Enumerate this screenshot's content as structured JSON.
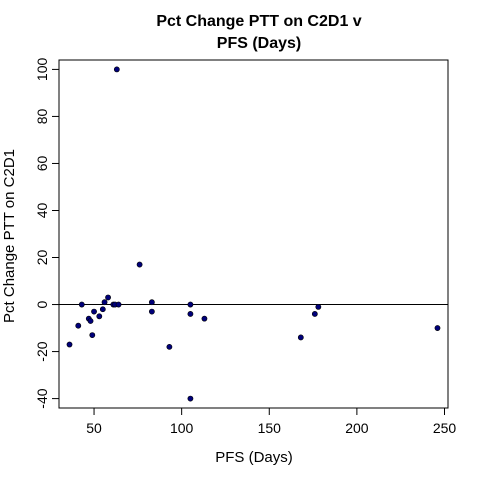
{
  "chart_data": {
    "type": "scatter",
    "title": [
      "Pct Change PTT on C2D1 v",
      "PFS (Days)"
    ],
    "xlabel": "PFS (Days)",
    "ylabel": "Pct Change PTT on C2D1",
    "xlim": [
      30,
      252
    ],
    "ylim": [
      -44,
      104
    ],
    "xticks": [
      50,
      100,
      150,
      200,
      250
    ],
    "yticks": [
      -40,
      -20,
      0,
      20,
      40,
      60,
      80,
      100
    ],
    "reference_line": {
      "y": 0
    },
    "grid": false,
    "legend": "none",
    "marker_color": "#00007a",
    "points": [
      {
        "x": 36,
        "y": -17
      },
      {
        "x": 41,
        "y": -9
      },
      {
        "x": 43,
        "y": 0
      },
      {
        "x": 47,
        "y": -6
      },
      {
        "x": 48,
        "y": -7
      },
      {
        "x": 49,
        "y": -13
      },
      {
        "x": 50,
        "y": -3
      },
      {
        "x": 53,
        "y": -5
      },
      {
        "x": 55,
        "y": -2
      },
      {
        "x": 56,
        "y": 1
      },
      {
        "x": 58,
        "y": 3
      },
      {
        "x": 61,
        "y": 0
      },
      {
        "x": 62,
        "y": 0
      },
      {
        "x": 63,
        "y": 100
      },
      {
        "x": 64,
        "y": 0
      },
      {
        "x": 76,
        "y": 17
      },
      {
        "x": 83,
        "y": 1
      },
      {
        "x": 83,
        "y": -3
      },
      {
        "x": 93,
        "y": -18
      },
      {
        "x": 105,
        "y": 0
      },
      {
        "x": 105,
        "y": -4
      },
      {
        "x": 105,
        "y": -40
      },
      {
        "x": 113,
        "y": -6
      },
      {
        "x": 168,
        "y": -14
      },
      {
        "x": 176,
        "y": -4
      },
      {
        "x": 178,
        "y": -1
      },
      {
        "x": 246,
        "y": -10
      }
    ]
  }
}
